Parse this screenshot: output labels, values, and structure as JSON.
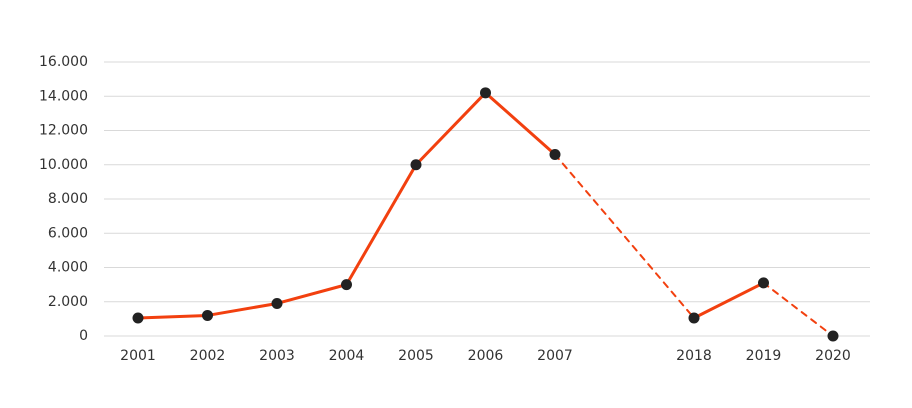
{
  "chart_data": {
    "type": "line",
    "categories": [
      "2001",
      "2002",
      "2003",
      "2004",
      "2005",
      "2006",
      "2007",
      null,
      "2018",
      "2019",
      "2020"
    ],
    "series": [
      {
        "color": "#f2400f",
        "values": [
          1050,
          1200,
          1900,
          3000,
          10000,
          14200,
          10600,
          null,
          1050,
          3100,
          0
        ],
        "dashed_from": [
          6,
          9
        ]
      }
    ],
    "marker_color": "#222222",
    "ylim": [
      0,
      16000
    ],
    "yticks": [
      0,
      {
        "value": 2000,
        "label": "2.000"
      },
      {
        "value": 4000,
        "label": "4.000"
      },
      {
        "value": 6000,
        "label": "6.000"
      },
      {
        "value": 8000,
        "label": "8.000"
      },
      {
        "value": 10000,
        "label": "10.000"
      },
      {
        "value": 12000,
        "label": "12.000"
      },
      {
        "value": 14000,
        "label": "14.000"
      },
      {
        "value": 16000,
        "label": "16.000"
      }
    ],
    "grid": true
  }
}
